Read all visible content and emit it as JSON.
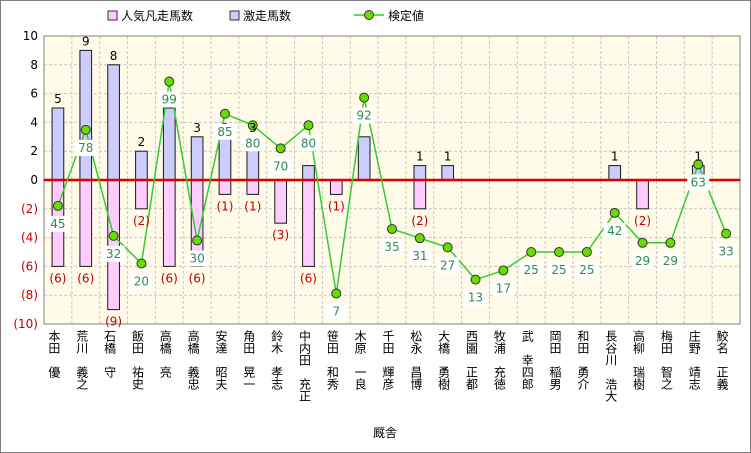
{
  "chart_data": {
    "type": "bar",
    "xlabel": "厩舎",
    "ylim": [
      -10,
      10
    ],
    "y_ticks": [
      "10",
      "8",
      "6",
      "4",
      "2",
      "0",
      "(2)",
      "(4)",
      "(6)",
      "(8)",
      "(10)"
    ],
    "categories": [
      "本田　優",
      "荒川　義之",
      "石橋　守",
      "飯田　祐史",
      "高橋　亮",
      "高橋　義忠",
      "安達　昭夫",
      "角田　晃一",
      "鈴木　孝志",
      "中内田　充正",
      "笹田　和秀",
      "木原　一良",
      "千田　輝彦",
      "松永　昌博",
      "大橋　勇樹",
      "西園　正都",
      "牧浦　充徳",
      "武　幸四郎",
      "岡田　稲男",
      "和田　勇介",
      "長谷川　浩大",
      "高柳　瑞樹",
      "梅田　智之",
      "庄野　靖志",
      "鮫名　正義"
    ],
    "series": [
      {
        "name": "人気凡走馬数",
        "type": "bar",
        "color": "#ffccff",
        "values": [
          -6,
          -6,
          -9,
          -2,
          -6,
          -6,
          -1,
          -1,
          -3,
          -6,
          -1,
          0,
          0,
          -2,
          0,
          0,
          0,
          0,
          0,
          0,
          0,
          -2,
          0,
          0,
          0
        ],
        "labels": [
          "(6)",
          "(6)",
          "(9)",
          "(2)",
          "(6)",
          "(6)",
          "(1)",
          "(1)",
          "(3)",
          "(6)",
          "(1)",
          "",
          "",
          "(2)",
          "",
          "",
          "",
          "",
          "",
          "",
          "",
          "(2)",
          "",
          "",
          ""
        ]
      },
      {
        "name": "激走馬数",
        "type": "bar",
        "color": "#ccccff",
        "values": [
          5,
          9,
          8,
          2,
          5,
          3,
          3,
          3,
          0,
          1,
          0,
          3,
          0,
          1,
          1,
          0,
          0,
          0,
          0,
          0,
          1,
          0,
          0,
          1,
          0
        ],
        "labels": [
          "5",
          "9",
          "8",
          "2",
          "5",
          "3",
          "3",
          "3",
          "",
          "",
          "",
          "",
          "",
          "1",
          "1",
          "",
          "",
          "",
          "",
          "",
          "1",
          "",
          "",
          "1",
          ""
        ]
      },
      {
        "name": "検定値",
        "type": "line",
        "color": "#33cc33",
        "marker_color": "#66dd00",
        "values": [
          45,
          78,
          32,
          20,
          99,
          30,
          85,
          80,
          70,
          80,
          7,
          92,
          35,
          31,
          27,
          13,
          17,
          25,
          25,
          25,
          42,
          29,
          29,
          63,
          33
        ]
      }
    ]
  }
}
